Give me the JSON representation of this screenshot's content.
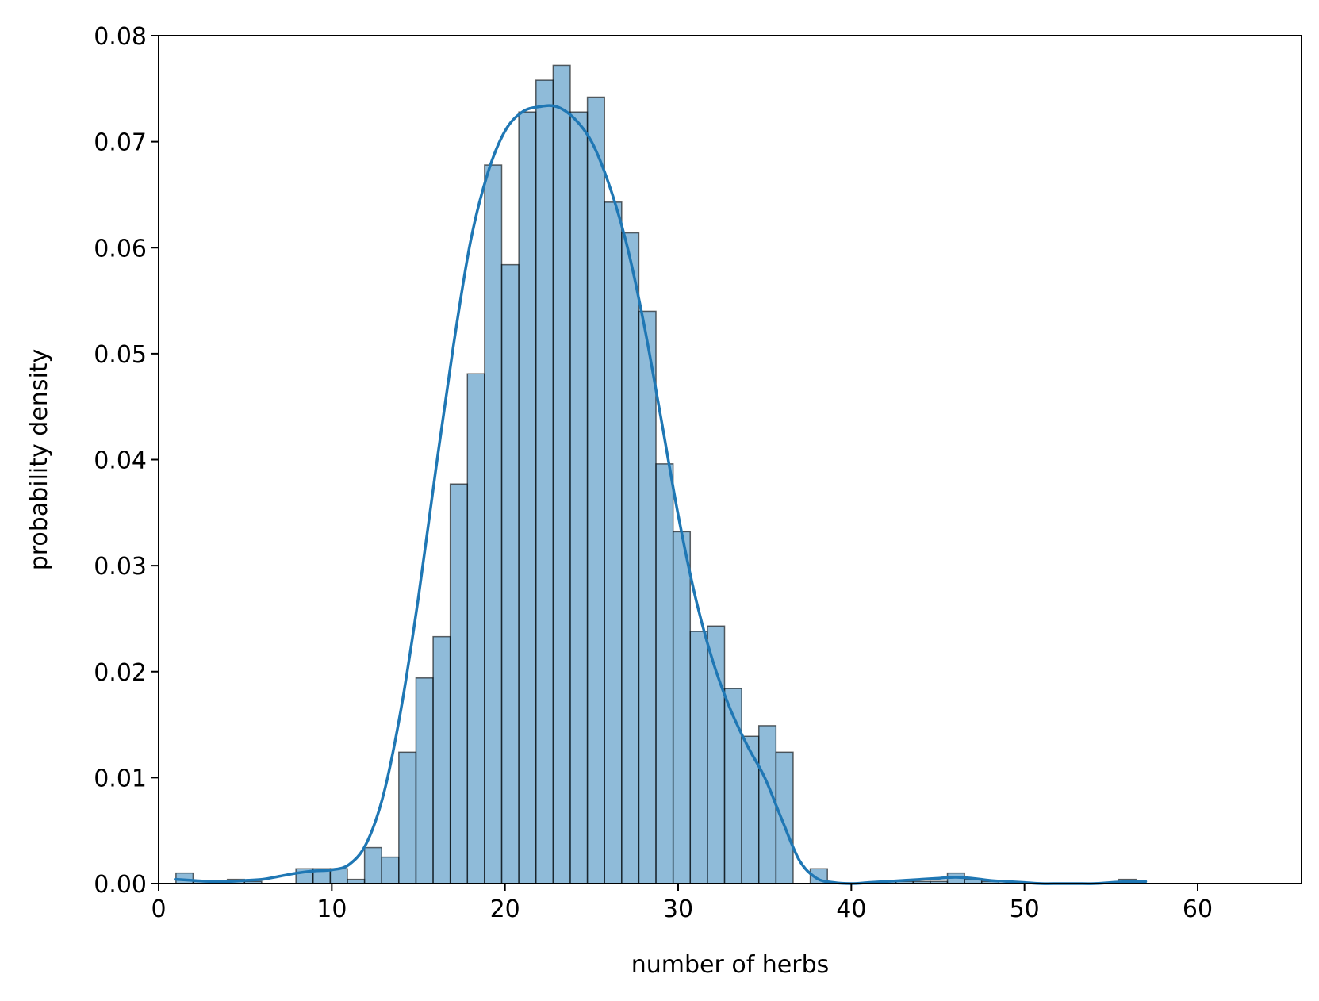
{
  "chart_data": {
    "type": "bar",
    "subtype": "histogram with density curve",
    "title": "",
    "xlabel": "number of herbs",
    "ylabel": "probability density",
    "xlim": [
      0,
      66
    ],
    "ylim": [
      0,
      0.08
    ],
    "x_ticks": [
      0,
      10,
      20,
      30,
      40,
      50,
      60
    ],
    "y_ticks": [
      0.0,
      0.01,
      0.02,
      0.03,
      0.04,
      0.05,
      0.06,
      0.07,
      0.08
    ],
    "x_tick_labels": [
      "0",
      "10",
      "20",
      "30",
      "40",
      "50",
      "60"
    ],
    "y_tick_labels": [
      "0.00",
      "0.01",
      "0.02",
      "0.03",
      "0.04",
      "0.05",
      "0.06",
      "0.07",
      "0.08"
    ],
    "grid": false,
    "legend": "none",
    "colors": {
      "bar_fill": "#1f77b4",
      "bar_opacity": 0.5,
      "bar_edge": "#000000",
      "curve": "#1f77b4"
    },
    "bins": {
      "start": 1.0,
      "width": 0.99,
      "heights": [
        0.001,
        0.0002,
        0.0002,
        0.0004,
        0.0002,
        0.0,
        0.0,
        0.0014,
        0.0014,
        0.0014,
        0.0004,
        0.0034,
        0.0025,
        0.0124,
        0.0194,
        0.0233,
        0.0377,
        0.0481,
        0.0678,
        0.0584,
        0.0728,
        0.0758,
        0.0772,
        0.0728,
        0.0742,
        0.0643,
        0.0614,
        0.054,
        0.0396,
        0.0332,
        0.0238,
        0.0243,
        0.0184,
        0.0139,
        0.0149,
        0.0124,
        0.0,
        0.0014,
        0.0,
        0.0,
        0.0,
        0.0002,
        0.0002,
        0.0002,
        0.0002,
        0.001,
        0.0004,
        0.0002,
        0.0,
        0.0,
        0.0,
        0.0,
        0.0,
        0.0,
        0.0,
        0.0004
      ]
    },
    "density_curve": {
      "x": [
        1,
        2,
        3,
        4,
        5,
        6,
        7,
        8,
        9,
        10,
        11,
        12,
        13,
        14,
        15,
        16,
        17,
        18,
        19,
        20,
        21,
        22,
        23,
        24,
        25,
        26,
        27,
        28,
        29,
        30,
        31,
        32,
        33,
        34,
        35,
        36,
        37,
        38,
        39,
        40,
        41,
        42,
        43,
        44,
        45,
        46,
        47,
        48,
        49,
        50,
        51,
        52,
        53,
        54,
        55,
        56,
        57
      ],
      "y": [
        0.0004,
        0.0003,
        0.0002,
        0.0002,
        0.0003,
        0.0004,
        0.0007,
        0.001,
        0.0012,
        0.0013,
        0.0018,
        0.0038,
        0.0085,
        0.0165,
        0.027,
        0.039,
        0.0505,
        0.0605,
        0.067,
        0.071,
        0.0728,
        0.0733,
        0.0733,
        0.0722,
        0.07,
        0.066,
        0.0605,
        0.053,
        0.044,
        0.0348,
        0.027,
        0.021,
        0.0165,
        0.013,
        0.01,
        0.006,
        0.0022,
        0.0005,
        0.0001,
        0.0,
        0.0001,
        0.0002,
        0.0003,
        0.0004,
        0.0005,
        0.0006,
        0.0005,
        0.0003,
        0.0002,
        0.0001,
        0.0,
        0.0,
        0.0,
        0.0,
        0.0001,
        0.0002,
        0.0002
      ]
    }
  }
}
